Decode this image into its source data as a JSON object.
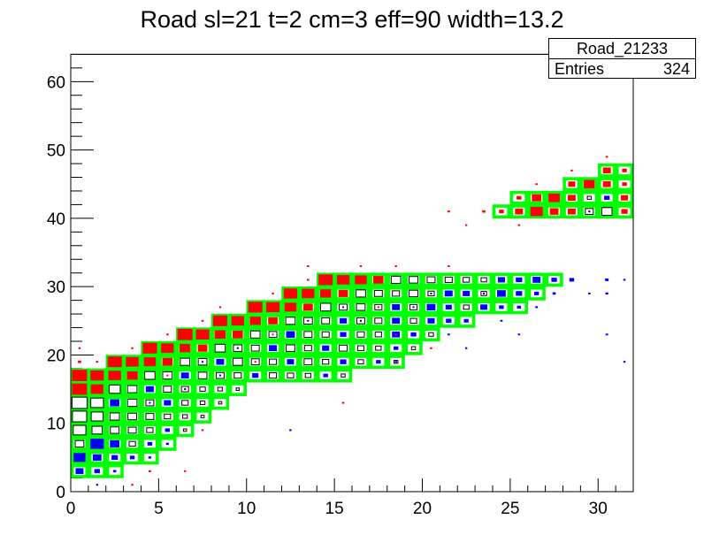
{
  "title": "Road sl=21 t=2 cm=3 eff=90 width=13.2",
  "stats": {
    "name": "Road_21233",
    "entries_label": "Entries",
    "entries_value": "324"
  },
  "colors": {
    "road": "#00ff00",
    "red": "#ff0000",
    "blue": "#0000ff",
    "black": "#000000",
    "white": "#ffffff",
    "frame": "#000000",
    "background": "#ffffff"
  },
  "axes": {
    "x": {
      "min": 0,
      "max": 32,
      "major_tick_values": [
        0,
        5,
        10,
        15,
        20,
        25,
        30
      ],
      "minor_tick_step": 1
    },
    "y": {
      "min": 0,
      "max": 64,
      "major_tick_values": [
        0,
        10,
        20,
        30,
        40,
        50,
        60
      ],
      "minor_tick_step": 2
    }
  },
  "chart_data": {
    "type": "heatmap",
    "title": "Road sl=21 t=2 cm=3 eff=90 width=13.2",
    "xlabel": "",
    "ylabel": "",
    "xlim": [
      0,
      32
    ],
    "ylim": [
      0,
      64
    ],
    "x_bin_width": 1,
    "y_bin_height": 2,
    "road_rows": [
      [
        1,
        0,
        2
      ],
      [
        2,
        0,
        4
      ],
      [
        3,
        0,
        5
      ],
      [
        4,
        0,
        6
      ],
      [
        5,
        0,
        7
      ],
      [
        6,
        0,
        8
      ],
      [
        7,
        0,
        9
      ],
      [
        8,
        0,
        15
      ],
      [
        9,
        2,
        18
      ],
      [
        10,
        4,
        19
      ],
      [
        11,
        6,
        20
      ],
      [
        12,
        8,
        22
      ],
      [
        13,
        10,
        25
      ],
      [
        14,
        12,
        26
      ],
      [
        15,
        14,
        27
      ],
      [
        20,
        24,
        31
      ],
      [
        21,
        25,
        31
      ],
      [
        22,
        28,
        31
      ],
      [
        23,
        30,
        31
      ]
    ],
    "box_runs": [
      [
        1,
        0,
        "blue",
        [
          0.5,
          0.35,
          0.2
        ]
      ],
      [
        2,
        0,
        "blue",
        [
          0.75,
          0.55,
          0.4,
          0.3,
          0.18
        ]
      ],
      [
        3,
        0,
        "white",
        [
          0.55
        ]
      ],
      [
        3,
        1,
        "blue",
        [
          0.85,
          0.6
        ]
      ],
      [
        3,
        3,
        "white",
        [
          0.4
        ]
      ],
      [
        3,
        4,
        "blue",
        [
          0.3,
          0.18
        ]
      ],
      [
        4,
        0,
        "white",
        [
          0.8,
          0.65,
          0.55,
          0.5,
          0.4
        ]
      ],
      [
        4,
        5,
        "blue",
        [
          0.3
        ]
      ],
      [
        4,
        6,
        "white",
        [
          0.2
        ]
      ],
      [
        5,
        0,
        "white",
        [
          0.9,
          0.75,
          0.6,
          0.55,
          0.5,
          0.4,
          0.3,
          0.2
        ]
      ],
      [
        6,
        0,
        "white",
        [
          0.95,
          0.8
        ]
      ],
      [
        6,
        2,
        "blue",
        [
          0.6
        ]
      ],
      [
        6,
        3,
        "white",
        [
          0.6,
          0.5
        ]
      ],
      [
        6,
        5,
        "blue",
        [
          0.45
        ]
      ],
      [
        6,
        6,
        "white",
        [
          0.4,
          0.3,
          0.2
        ]
      ],
      [
        7,
        0,
        "red",
        [
          0.95,
          0.8
        ]
      ],
      [
        7,
        2,
        "white",
        [
          0.7,
          0.6
        ]
      ],
      [
        7,
        4,
        "blue",
        [
          0.5
        ]
      ],
      [
        7,
        5,
        "white",
        [
          0.5,
          0.45,
          0.35,
          0.3,
          0.2
        ]
      ],
      [
        8,
        0,
        "red",
        [
          0.95,
          0.85,
          0.8,
          0.7
        ]
      ],
      [
        8,
        4,
        "white",
        [
          0.65,
          0.6
        ]
      ],
      [
        8,
        6,
        "blue",
        [
          0.5
        ]
      ],
      [
        8,
        7,
        "white",
        [
          0.55,
          0.5,
          0.45
        ]
      ],
      [
        8,
        10,
        "blue",
        [
          0.4
        ]
      ],
      [
        8,
        11,
        "white",
        [
          0.45,
          0.4,
          0.35
        ]
      ],
      [
        8,
        14,
        "blue",
        [
          0.3
        ]
      ],
      [
        8,
        15,
        "white",
        [
          0.25
        ]
      ],
      [
        9,
        2,
        "red",
        [
          0.9,
          0.8,
          0.75,
          0.65
        ]
      ],
      [
        9,
        6,
        "white",
        [
          0.6,
          0.55
        ]
      ],
      [
        9,
        8,
        "blue",
        [
          0.5
        ]
      ],
      [
        9,
        9,
        "white",
        [
          0.6,
          0.5,
          0.45
        ]
      ],
      [
        9,
        12,
        "blue",
        [
          0.45
        ]
      ],
      [
        9,
        13,
        "white",
        [
          0.5,
          0.4
        ]
      ],
      [
        9,
        15,
        "blue",
        [
          0.4
        ]
      ],
      [
        9,
        16,
        "white",
        [
          0.35
        ]
      ],
      [
        9,
        17,
        "blue",
        [
          0.3
        ]
      ],
      [
        9,
        18,
        "white",
        [
          0.25
        ]
      ],
      [
        10,
        4,
        "red",
        [
          0.9,
          0.8,
          0.7,
          0.6
        ]
      ],
      [
        10,
        8,
        "white",
        [
          0.65,
          0.55,
          0.5
        ]
      ],
      [
        10,
        11,
        "blue",
        [
          0.5
        ]
      ],
      [
        10,
        12,
        "white",
        [
          0.55,
          0.45
        ]
      ],
      [
        10,
        14,
        "blue",
        [
          0.45
        ]
      ],
      [
        10,
        15,
        "white",
        [
          0.5,
          0.4,
          0.35
        ]
      ],
      [
        10,
        18,
        "blue",
        [
          0.3
        ]
      ],
      [
        10,
        19,
        "white",
        [
          0.25
        ]
      ],
      [
        11,
        6,
        "red",
        [
          0.95,
          0.85,
          0.7,
          0.65
        ]
      ],
      [
        11,
        10,
        "white",
        [
          0.6,
          0.5
        ]
      ],
      [
        11,
        12,
        "blue",
        [
          0.55
        ]
      ],
      [
        11,
        13,
        "white",
        [
          0.5,
          0.45
        ]
      ],
      [
        11,
        15,
        "blue",
        [
          0.4
        ]
      ],
      [
        11,
        16,
        "white",
        [
          0.45,
          0.4
        ]
      ],
      [
        11,
        18,
        "blue",
        [
          0.5,
          0.35
        ]
      ],
      [
        11,
        20,
        "white",
        [
          0.3
        ]
      ],
      [
        12,
        8,
        "red",
        [
          0.9,
          0.8,
          0.7,
          0.6
        ]
      ],
      [
        12,
        12,
        "white",
        [
          0.6,
          0.55,
          0.5
        ]
      ],
      [
        12,
        15,
        "blue",
        [
          0.45
        ]
      ],
      [
        12,
        16,
        "white",
        [
          0.5,
          0.45
        ]
      ],
      [
        12,
        18,
        "blue",
        [
          0.5
        ]
      ],
      [
        12,
        19,
        "white",
        [
          0.4
        ]
      ],
      [
        12,
        20,
        "blue",
        [
          0.45,
          0.35,
          0.3
        ]
      ],
      [
        13,
        10,
        "red",
        [
          0.9,
          0.85,
          0.75,
          0.6
        ]
      ],
      [
        13,
        14,
        "white",
        [
          0.65,
          0.5,
          0.55,
          0.45
        ]
      ],
      [
        13,
        18,
        "blue",
        [
          0.5
        ]
      ],
      [
        13,
        19,
        "white",
        [
          0.45
        ]
      ],
      [
        13,
        20,
        "blue",
        [
          0.55,
          0.4
        ]
      ],
      [
        13,
        22,
        "white",
        [
          0.35
        ]
      ],
      [
        13,
        23,
        "blue",
        [
          0.45,
          0.3,
          0.25
        ]
      ],
      [
        14,
        12,
        "red",
        [
          0.85,
          0.8,
          0.7,
          0.6
        ]
      ],
      [
        14,
        16,
        "white",
        [
          0.6,
          0.5,
          0.45,
          0.55,
          0.4
        ]
      ],
      [
        14,
        21,
        "blue",
        [
          0.5,
          0.45
        ]
      ],
      [
        14,
        23,
        "white",
        [
          0.35
        ]
      ],
      [
        14,
        24,
        "blue",
        [
          0.55,
          0.4,
          0.3
        ]
      ],
      [
        15,
        14,
        "red",
        [
          0.9,
          0.8,
          0.75,
          0.65
        ]
      ],
      [
        15,
        18,
        "white",
        [
          0.6,
          0.55,
          0.5,
          0.45,
          0.4,
          0.35
        ]
      ],
      [
        15,
        24,
        "blue",
        [
          0.45,
          0.4,
          0.5,
          0.35
        ]
      ],
      [
        20,
        24,
        "red",
        [
          0.3,
          0.5,
          0.78,
          0.55,
          0.5
        ]
      ],
      [
        20,
        29,
        "white",
        [
          0.5,
          0.65
        ]
      ],
      [
        20,
        31,
        "red",
        [
          0.4
        ]
      ],
      [
        21,
        25,
        "red",
        [
          0.3,
          0.6,
          0.72,
          0.5
        ]
      ],
      [
        21,
        29,
        "white",
        [
          0.25
        ]
      ],
      [
        21,
        30,
        "blue",
        [
          0.35
        ]
      ],
      [
        21,
        31,
        "red",
        [
          0.45
        ]
      ],
      [
        22,
        28,
        "red",
        [
          0.45,
          0.7,
          0.5,
          0.3
        ]
      ],
      [
        23,
        30,
        "red",
        [
          0.5,
          0.3
        ]
      ]
    ],
    "point_boxes": [
      [
        1,
        0,
        0.14,
        "blue"
      ],
      [
        3,
        0,
        0.14,
        "red"
      ],
      [
        4,
        1,
        0.16,
        "red"
      ],
      [
        6,
        1,
        0.13,
        "red"
      ],
      [
        7,
        4,
        0.14,
        "red"
      ],
      [
        12,
        4,
        0.14,
        "blue"
      ],
      [
        15,
        6,
        0.14,
        "red"
      ],
      [
        18,
        9,
        0.14,
        "blue"
      ],
      [
        20,
        10,
        0.14,
        "red"
      ],
      [
        21,
        11,
        0.15,
        "blue"
      ],
      [
        22,
        10,
        0.13,
        "blue"
      ],
      [
        25,
        11,
        0.14,
        "blue"
      ],
      [
        24,
        12,
        0.15,
        "blue"
      ],
      [
        26,
        13,
        0.16,
        "blue"
      ],
      [
        27,
        14,
        0.2,
        "blue"
      ],
      [
        28,
        15,
        0.3,
        "blue"
      ],
      [
        29,
        14,
        0.15,
        "blue"
      ],
      [
        30,
        15,
        0.22,
        "blue"
      ],
      [
        31,
        15,
        0.15,
        "blue"
      ],
      [
        30,
        14,
        0.18,
        "blue"
      ],
      [
        30,
        11,
        0.15,
        "blue"
      ],
      [
        31,
        9,
        0.14,
        "blue"
      ],
      [
        0,
        9,
        0.2,
        "red"
      ],
      [
        1,
        9,
        0.15,
        "red"
      ],
      [
        0,
        10,
        0.14,
        "red"
      ],
      [
        3,
        10,
        0.14,
        "red"
      ],
      [
        5,
        11,
        0.14,
        "red"
      ],
      [
        7,
        12,
        0.14,
        "red"
      ],
      [
        8,
        13,
        0.13,
        "red"
      ],
      [
        11,
        14,
        0.14,
        "red"
      ],
      [
        13,
        15,
        0.15,
        "red"
      ],
      [
        13,
        16,
        0.14,
        "red"
      ],
      [
        16,
        16,
        0.13,
        "red"
      ],
      [
        18,
        16,
        0.13,
        "red"
      ],
      [
        21,
        16,
        0.14,
        "red"
      ],
      [
        21,
        20,
        0.16,
        "red"
      ],
      [
        23,
        20,
        0.2,
        "red"
      ],
      [
        25,
        19,
        0.14,
        "red"
      ],
      [
        22,
        19,
        0.13,
        "red"
      ],
      [
        26,
        22,
        0.14,
        "red"
      ],
      [
        28,
        23,
        0.14,
        "red"
      ],
      [
        30,
        24,
        0.14,
        "red"
      ],
      [
        2,
        6,
        0.1,
        "black"
      ],
      [
        4,
        6,
        0.1,
        "blue"
      ],
      [
        6,
        7,
        0.1,
        "black"
      ],
      [
        8,
        8,
        0.1,
        "blue"
      ],
      [
        10,
        9,
        0.1,
        "red"
      ],
      [
        12,
        9,
        0.1,
        "black"
      ],
      [
        14,
        10,
        0.1,
        "blue"
      ],
      [
        18,
        11,
        0.1,
        "red"
      ],
      [
        16,
        12,
        0.1,
        "black"
      ],
      [
        9,
        10,
        0.1,
        "black"
      ],
      [
        11,
        11,
        0.1,
        "red"
      ],
      [
        13,
        12,
        0.1,
        "black"
      ],
      [
        15,
        13,
        0.1,
        "blue"
      ],
      [
        17,
        13,
        0.1,
        "red"
      ],
      [
        19,
        13,
        0.12,
        "blue"
      ],
      [
        20,
        14,
        0.1,
        "black"
      ],
      [
        22,
        14,
        0.12,
        "blue"
      ],
      [
        21,
        13,
        0.1,
        "black"
      ],
      [
        23,
        14,
        0.1,
        "black"
      ],
      [
        24,
        15,
        0.12,
        "blue"
      ],
      [
        5,
        8,
        0.1,
        "red"
      ],
      [
        7,
        9,
        0.1,
        "blue"
      ],
      [
        29,
        20,
        0.12,
        "black"
      ],
      [
        30,
        21,
        0.12,
        "blue"
      ]
    ]
  }
}
